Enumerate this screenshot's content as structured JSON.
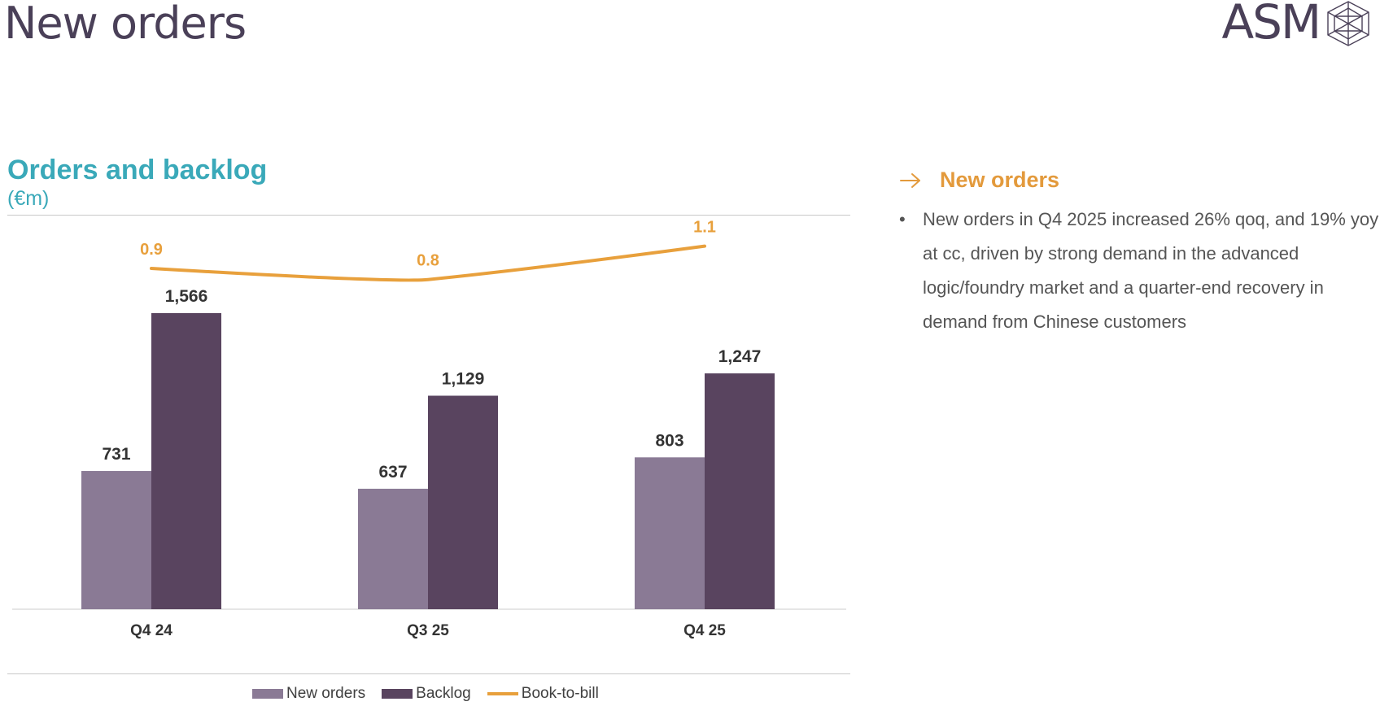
{
  "page": {
    "title": "New orders",
    "logo_text": "ASM"
  },
  "chart_data": {
    "type": "bar",
    "title": "Orders and backlog",
    "subtitle": "(€m)",
    "categories": [
      "Q4 24",
      "Q3 25",
      "Q4 25"
    ],
    "series": [
      {
        "name": "New orders",
        "type": "bar",
        "color": "#8a7a95",
        "values": [
          731,
          637,
          803
        ]
      },
      {
        "name": "Backlog",
        "type": "bar",
        "color": "#59445f",
        "values": [
          1566,
          1129,
          1247
        ]
      },
      {
        "name": "Book-to-bill",
        "type": "line",
        "color": "#e8a03c",
        "values": [
          0.9,
          0.8,
          1.1
        ]
      }
    ],
    "data_labels": {
      "New orders": [
        "731",
        "637",
        "803"
      ],
      "Backlog": [
        "1,566",
        "1,129",
        "1,247"
      ],
      "Book-to-bill": [
        "0.9",
        "0.8",
        "1.1"
      ]
    },
    "ylim": [
      0,
      1600
    ],
    "legend_position": "bottom-center",
    "grid": false
  },
  "side_panel": {
    "header": "New orders",
    "arrow_icon": "arrow-right-icon",
    "bullets": [
      "New orders in Q4 2025 increased 26% qoq, and 19% yoy at cc, driven by strong demand in the advanced logic/foundry market and a quarter-end recovery in demand from Chinese customers"
    ],
    "header_color": "#e39a3c"
  }
}
